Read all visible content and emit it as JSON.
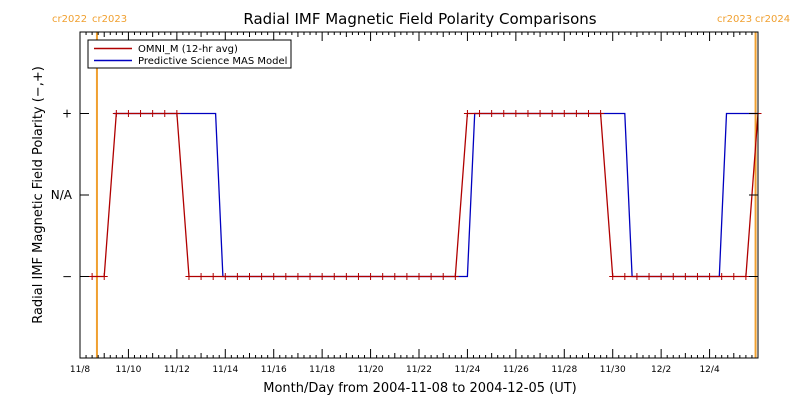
{
  "chart_data": {
    "type": "line",
    "title": "Radial IMF Magnetic Field Polarity Comparisons",
    "xlabel": "Month/Day from 2004-11-08 to 2004-12-05 (UT)",
    "ylabel": "Radial IMF Magnetic Field Polarity (−,+)",
    "x_unit": "day of November 2004",
    "xlim": [
      8.0,
      36.0
    ],
    "ylim": [
      -2,
      2
    ],
    "x_ticks": [
      {
        "x": 8,
        "label": "11/8"
      },
      {
        "x": 10,
        "label": "11/10"
      },
      {
        "x": 12,
        "label": "11/12"
      },
      {
        "x": 14,
        "label": "11/14"
      },
      {
        "x": 16,
        "label": "11/16"
      },
      {
        "x": 18,
        "label": "11/18"
      },
      {
        "x": 20,
        "label": "11/20"
      },
      {
        "x": 22,
        "label": "11/22"
      },
      {
        "x": 24,
        "label": "11/24"
      },
      {
        "x": 26,
        "label": "11/26"
      },
      {
        "x": 28,
        "label": "11/28"
      },
      {
        "x": 30,
        "label": "11/30"
      },
      {
        "x": 32,
        "label": "12/2"
      },
      {
        "x": 34,
        "label": "12/4"
      }
    ],
    "y_ticks": [
      {
        "y": 1,
        "label": "+"
      },
      {
        "y": 0,
        "label": "N/A"
      },
      {
        "y": -1,
        "label": "−"
      }
    ],
    "legend": {
      "placement": "top-left"
    },
    "series": [
      {
        "name": "OMNI_M (12-hr avg)",
        "color": "#b00000",
        "marker": "plus",
        "points": [
          [
            8.5,
            -1
          ],
          [
            9.0,
            -1
          ],
          [
            9.5,
            1
          ],
          [
            10.0,
            1
          ],
          [
            10.5,
            1
          ],
          [
            11.0,
            1
          ],
          [
            11.5,
            1
          ],
          [
            12.0,
            1
          ],
          [
            12.5,
            -1
          ],
          [
            13.0,
            -1
          ],
          [
            13.5,
            -1
          ],
          [
            14.0,
            -1
          ],
          [
            14.5,
            -1
          ],
          [
            15.0,
            -1
          ],
          [
            15.5,
            -1
          ],
          [
            16.0,
            -1
          ],
          [
            16.5,
            -1
          ],
          [
            17.0,
            -1
          ],
          [
            17.5,
            -1
          ],
          [
            18.0,
            -1
          ],
          [
            18.5,
            -1
          ],
          [
            19.0,
            -1
          ],
          [
            19.5,
            -1
          ],
          [
            20.0,
            -1
          ],
          [
            20.5,
            -1
          ],
          [
            21.0,
            -1
          ],
          [
            21.5,
            -1
          ],
          [
            22.0,
            -1
          ],
          [
            22.5,
            -1
          ],
          [
            23.0,
            -1
          ],
          [
            23.5,
            -1
          ],
          [
            24.0,
            1
          ],
          [
            24.5,
            1
          ],
          [
            25.0,
            1
          ],
          [
            25.5,
            1
          ],
          [
            26.0,
            1
          ],
          [
            26.5,
            1
          ],
          [
            27.0,
            1
          ],
          [
            27.5,
            1
          ],
          [
            28.0,
            1
          ],
          [
            28.5,
            1
          ],
          [
            29.0,
            1
          ],
          [
            29.5,
            1
          ],
          [
            30.0,
            -1
          ],
          [
            30.5,
            -1
          ],
          [
            31.0,
            -1
          ],
          [
            31.5,
            -1
          ],
          [
            32.0,
            -1
          ],
          [
            32.5,
            -1
          ],
          [
            33.0,
            -1
          ],
          [
            33.5,
            -1
          ],
          [
            34.0,
            -1
          ],
          [
            34.5,
            -1
          ],
          [
            35.0,
            -1
          ],
          [
            35.5,
            -1
          ],
          [
            36.0,
            1
          ]
        ]
      },
      {
        "name": "Predictive Science MAS Model",
        "color": "#0000c0",
        "marker": "none",
        "points": [
          [
            9.4,
            1
          ],
          [
            13.6,
            1
          ],
          [
            13.9,
            -1
          ],
          [
            24.0,
            -1
          ],
          [
            24.3,
            1
          ],
          [
            30.5,
            1
          ],
          [
            30.8,
            -1
          ],
          [
            34.4,
            -1
          ],
          [
            34.7,
            1
          ],
          [
            36.0,
            1
          ]
        ]
      }
    ],
    "rotations": [
      {
        "x": 8.7,
        "color": "#f0a030",
        "labels": [
          "cr2022",
          "cr2023"
        ]
      },
      {
        "x": 35.9,
        "color": "#f0a030",
        "labels": [
          "cr2023",
          "cr2024"
        ]
      }
    ]
  }
}
